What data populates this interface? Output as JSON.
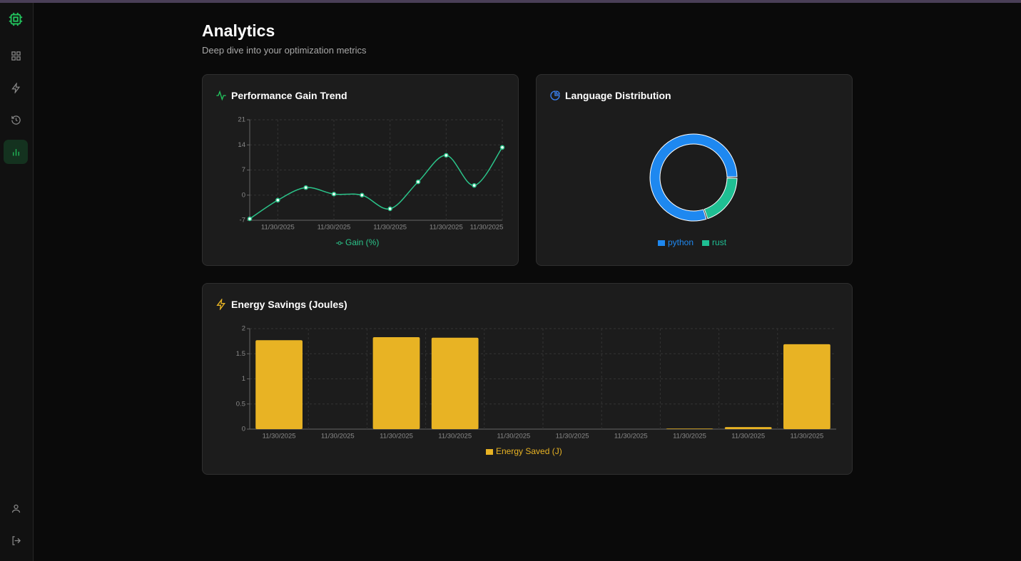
{
  "header": {
    "title": "Analytics",
    "subtitle": "Deep dive into your optimization metrics"
  },
  "chart_data": [
    {
      "type": "line",
      "title": "Performance Gain Trend",
      "categories": [
        null,
        "11/30/2025",
        null,
        "11/30/2025",
        null,
        "11/30/2025",
        null,
        "11/30/2025",
        null,
        "11/30/2025"
      ],
      "series": [
        {
          "name": "Gain (%)",
          "color": "#2bc48a",
          "values": [
            -6.6,
            -1.4,
            2.1,
            0.3,
            0,
            -3.8,
            3.7,
            11.1,
            2.7,
            13.3
          ]
        }
      ],
      "ylim": [
        -7,
        21
      ],
      "yticks": [
        -7,
        0,
        7,
        14,
        21
      ],
      "grid": true
    },
    {
      "type": "pie",
      "title": "Language Distribution",
      "donut": true,
      "categories": [
        "python",
        "rust"
      ],
      "values": [
        80,
        20
      ],
      "colors": [
        "#1e88f0",
        "#1fbf93"
      ]
    },
    {
      "type": "bar",
      "title": "Energy Savings (Joules)",
      "categories": [
        "11/30/2025",
        "11/30/2025",
        "11/30/2025",
        "11/30/2025",
        "11/30/2025",
        "11/30/2025",
        "11/30/2025",
        "11/30/2025",
        "11/30/2025",
        "11/30/2025"
      ],
      "series": [
        {
          "name": "Energy Saved (J)",
          "color": "#e8b324",
          "values": [
            1.77,
            0,
            1.83,
            1.82,
            0,
            0,
            0,
            0.01,
            0.04,
            1.69
          ]
        }
      ],
      "ylim": [
        0,
        2
      ],
      "yticks": [
        0,
        0.5,
        1,
        1.5,
        2
      ],
      "grid": true
    }
  ]
}
